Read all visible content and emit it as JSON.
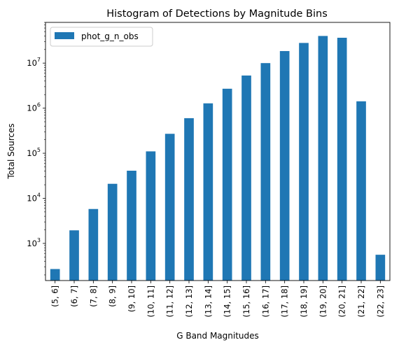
{
  "chart_data": {
    "type": "bar",
    "title": "Histogram of Detections by Magnitude Bins",
    "xlabel": "G Band Magnitudes",
    "ylabel": "Total Sources",
    "yscale": "log",
    "ylim": [
      150,
      80000000
    ],
    "grid": false,
    "legend_position": "top-left",
    "bar_color": "#1f77b4",
    "categories": [
      "(5, 6]",
      "(6, 7]",
      "(7, 8]",
      "(8, 9]",
      "(9, 10]",
      "(10, 11]",
      "(11, 12]",
      "(12, 13]",
      "(13, 14]",
      "(14, 15]",
      "(15, 16]",
      "(16, 17]",
      "(17, 18]",
      "(18, 19]",
      "(19, 20]",
      "(20, 21]",
      "(21, 22]",
      "(22, 23]"
    ],
    "series": [
      {
        "name": "phot_g_n_obs",
        "values": [
          270,
          1950,
          5800,
          21000,
          41000,
          110000,
          270000,
          600000,
          1280000,
          2700000,
          5300000,
          10000000,
          18500000,
          28000000,
          40000000,
          36500000,
          1420000,
          560
        ]
      }
    ],
    "yticks": [
      {
        "value": 1000,
        "base": "10",
        "exp": "3"
      },
      {
        "value": 10000,
        "base": "10",
        "exp": "4"
      },
      {
        "value": 100000,
        "base": "10",
        "exp": "5"
      },
      {
        "value": 1000000,
        "base": "10",
        "exp": "6"
      },
      {
        "value": 10000000,
        "base": "10",
        "exp": "7"
      }
    ]
  }
}
